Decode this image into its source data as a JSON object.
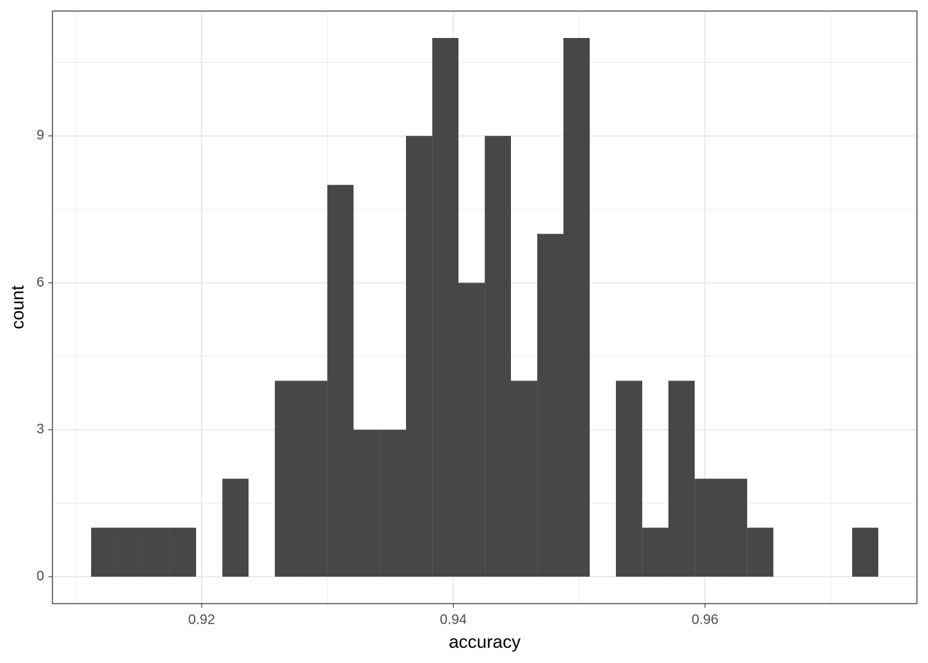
{
  "chart_data": {
    "type": "histogram",
    "x_label": "accuracy",
    "y_label": "count",
    "bins": [
      0.91122,
      0.91331,
      0.91539,
      0.91748,
      0.91956,
      0.92165,
      0.92373,
      0.92582,
      0.9279,
      0.92999,
      0.93207,
      0.93416,
      0.93624,
      0.93833,
      0.94041,
      0.9425,
      0.94458,
      0.94667,
      0.94875,
      0.95084,
      0.95292,
      0.95501,
      0.95709,
      0.95918,
      0.96126,
      0.96335,
      0.96543,
      0.96752,
      0.9696,
      0.97169,
      0.97377
    ],
    "values": [
      1,
      1,
      1,
      1,
      0,
      2,
      0,
      4,
      4,
      8,
      3,
      3,
      9,
      11,
      6,
      9,
      4,
      7,
      11,
      0,
      4,
      1,
      4,
      2,
      2,
      1,
      0,
      0,
      0,
      1
    ],
    "color": "#474747",
    "xlim": [
      0.90815,
      0.97684
    ],
    "xticks": [
      0.92,
      0.94,
      0.96
    ],
    "xminor": [
      0.91,
      0.93,
      0.95,
      0.97
    ],
    "ylim": [
      -0.55,
      11.55
    ],
    "yticks": [
      0,
      3,
      6,
      9
    ],
    "yminor": [
      1.5,
      4.5,
      7.5,
      10.5
    ],
    "grid": true
  }
}
